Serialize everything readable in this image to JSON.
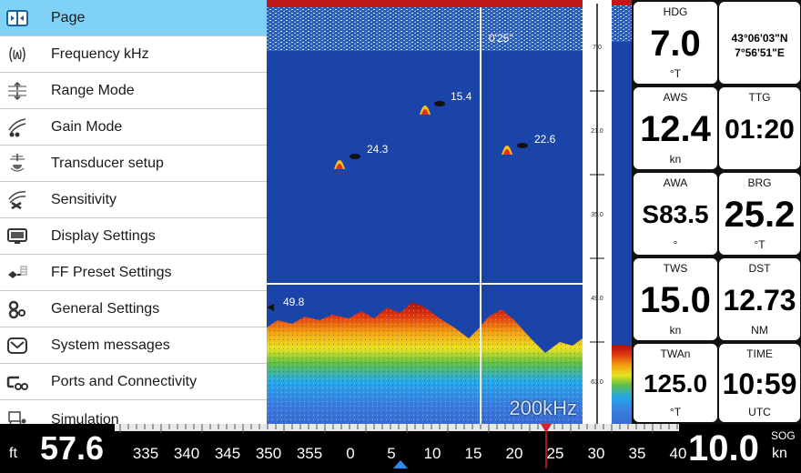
{
  "menu": {
    "items": [
      {
        "label": "Page",
        "icon": "page-icon",
        "selected": true
      },
      {
        "label": "Frequency kHz",
        "icon": "frequency-icon"
      },
      {
        "label": "Range Mode",
        "icon": "range-mode-icon"
      },
      {
        "label": "Gain Mode",
        "icon": "gain-mode-icon"
      },
      {
        "label": "Transducer setup",
        "icon": "transducer-icon"
      },
      {
        "label": "Sensitivity",
        "icon": "sensitivity-icon"
      },
      {
        "label": "Display Settings",
        "icon": "display-icon"
      },
      {
        "label": "FF Preset Settings",
        "icon": "ff-preset-icon"
      },
      {
        "label": "General Settings",
        "icon": "general-settings-icon"
      },
      {
        "label": "System messages",
        "icon": "messages-icon"
      },
      {
        "label": "Ports and Connectivity",
        "icon": "ports-icon"
      },
      {
        "label": "Simulation",
        "icon": "simulation-icon"
      }
    ]
  },
  "sonar": {
    "frequency": "200kHz",
    "temp_label": "0'25\"",
    "fish": [
      {
        "label": "15.4"
      },
      {
        "label": "24.3"
      },
      {
        "label": "22.6"
      }
    ],
    "bottom_depth_label": "49.8",
    "scale_labels": [
      "7.0",
      "21.0",
      "35.0",
      "49.0",
      "63.0"
    ]
  },
  "tiles": {
    "hdg": {
      "label": "HDG",
      "value": "7.0",
      "unit": "°T"
    },
    "pos": {
      "lat": "43°06'03\"N",
      "lon": "7°56'51\"E"
    },
    "aws": {
      "label": "AWS",
      "value": "12.4",
      "unit": "kn"
    },
    "ttg": {
      "label": "TTG",
      "value": "01:20"
    },
    "awa": {
      "label": "AWA",
      "value": "S83.5",
      "unit": "°"
    },
    "brg": {
      "label": "BRG",
      "value": "25.2",
      "unit": "°T"
    },
    "tws": {
      "label": "TWS",
      "value": "15.0",
      "unit": "kn"
    },
    "dst": {
      "label": "DST",
      "value": "12.73",
      "unit": "NM"
    },
    "twa": {
      "label": "TWAn",
      "value": "125.0",
      "unit": "°T"
    },
    "time": {
      "label": "TIME",
      "value": "10:59",
      "unit": "UTC"
    }
  },
  "bottom": {
    "depth_unit": "ft",
    "depth_value": "57.6",
    "compass_labels": [
      "335",
      "340",
      "345",
      "350",
      "355",
      "0",
      "5",
      "10",
      "15",
      "20",
      "25",
      "30",
      "35",
      "40"
    ],
    "sog_label": "SOG",
    "sog_value": "10.0",
    "sog_unit": "kn"
  },
  "colors": {
    "menu_selected": "#7fd2f5",
    "sonar_bg": "#1a44a8",
    "heading_marker": "#e02020"
  }
}
